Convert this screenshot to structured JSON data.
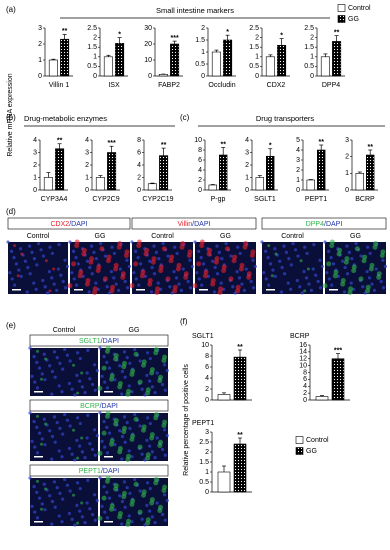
{
  "figure": {
    "panel_labels": [
      "(a)",
      "(b)",
      "(c)",
      "(d)",
      "(e)",
      "(f)"
    ],
    "section_titles": [
      "Small intestine markers",
      "Drug-metabolic enzymes",
      "Drug transporters"
    ],
    "y_axis_label_mrna": "Relative mRNA expression",
    "y_axis_label_cells": "Relative percentage of positive cells",
    "legend_top": [
      {
        "name": "Control",
        "color": "#ffffff"
      },
      {
        "name": "GG",
        "color": "#000000"
      }
    ],
    "legend_f": [
      {
        "name": "Control",
        "color": "#ffffff"
      },
      {
        "name": "GG",
        "color": "#000000"
      }
    ],
    "conditions": [
      "Control",
      "GG"
    ],
    "stains_d": [
      {
        "marker": "CDX2",
        "color": "#e8202a",
        "counterstain": "/DAPI",
        "counterstain_color": "#2233aa"
      },
      {
        "marker": "Villin",
        "color": "#e8202a",
        "counterstain": "/DAPI",
        "counterstain_color": "#2233aa"
      },
      {
        "marker": "DPP4",
        "color": "#2fb34a",
        "counterstain": "/DAPI",
        "counterstain_color": "#2233aa"
      }
    ],
    "stains_e": [
      {
        "marker": "SGLT1",
        "color": "#2fb34a",
        "counterstain": "/DAPI",
        "counterstain_color": "#2233aa"
      },
      {
        "marker": "BCRP",
        "color": "#2fb34a",
        "counterstain": "/DAPI",
        "counterstain_color": "#2233aa"
      },
      {
        "marker": "PEPT1",
        "color": "#2fb34a",
        "counterstain": "/DAPI",
        "counterstain_color": "#2233aa"
      }
    ]
  },
  "chart_data": [
    {
      "type": "bar",
      "xlabel": "Villin 1",
      "values": [
        1,
        2.3
      ],
      "errors": [
        0.05,
        0.3
      ],
      "significance": "**",
      "ylim": [
        0,
        3
      ],
      "yticks": [
        0,
        1,
        2,
        3
      ]
    },
    {
      "type": "bar",
      "xlabel": "ISX",
      "values": [
        1,
        1.7
      ],
      "errors": [
        0.08,
        0.3
      ],
      "significance": "*",
      "ylim": [
        0,
        2.5
      ],
      "yticks": [
        0,
        0.5,
        1,
        1.5,
        2,
        2.5
      ]
    },
    {
      "type": "bar",
      "xlabel": "FABP2",
      "values": [
        1,
        20
      ],
      "errors": [
        0.2,
        1.8
      ],
      "significance": "***",
      "ylim": [
        0,
        30
      ],
      "yticks": [
        0,
        10,
        20,
        30
      ]
    },
    {
      "type": "bar",
      "xlabel": "Occludin",
      "values": [
        1,
        1.5
      ],
      "errors": [
        0.08,
        0.2
      ],
      "significance": "*",
      "ylim": [
        0,
        2
      ],
      "yticks": [
        0,
        0.5,
        1,
        1.5,
        2
      ]
    },
    {
      "type": "bar",
      "xlabel": "CDX2",
      "values": [
        1,
        1.6
      ],
      "errors": [
        0.1,
        0.35
      ],
      "significance": "*",
      "ylim": [
        0,
        2.5
      ],
      "yticks": [
        0,
        0.5,
        1,
        1.5,
        2,
        2.5
      ]
    },
    {
      "type": "bar",
      "xlabel": "DPP4",
      "values": [
        1,
        1.8
      ],
      "errors": [
        0.15,
        0.3
      ],
      "significance": "**",
      "ylim": [
        0,
        2.5
      ],
      "yticks": [
        0,
        0.5,
        1,
        1.5,
        2,
        2.5
      ]
    },
    {
      "type": "bar",
      "xlabel": "CYP3A4",
      "values": [
        1,
        3.3
      ],
      "errors": [
        0.4,
        0.4
      ],
      "significance": "**",
      "ylim": [
        0,
        4
      ],
      "yticks": [
        0,
        1,
        2,
        3,
        4
      ]
    },
    {
      "type": "bar",
      "xlabel": "CYP2C9",
      "values": [
        1,
        3.0
      ],
      "errors": [
        0.15,
        0.5
      ],
      "significance": "***",
      "ylim": [
        0,
        4
      ],
      "yticks": [
        0,
        1,
        2,
        3,
        4
      ]
    },
    {
      "type": "bar",
      "xlabel": "CYP2C19",
      "values": [
        1,
        5.5
      ],
      "errors": [
        0.1,
        1.2
      ],
      "significance": "**",
      "ylim": [
        0,
        8
      ],
      "yticks": [
        0,
        2,
        4,
        6,
        8
      ]
    },
    {
      "type": "bar",
      "xlabel": "P-gp",
      "values": [
        1,
        7
      ],
      "errors": [
        0.1,
        1.5
      ],
      "significance": "**",
      "ylim": [
        0,
        10
      ],
      "yticks": [
        0,
        2,
        4,
        6,
        8,
        10
      ]
    },
    {
      "type": "bar",
      "xlabel": "SGLT1",
      "values": [
        1,
        2.7
      ],
      "errors": [
        0.15,
        0.6
      ],
      "significance": "*",
      "ylim": [
        0,
        4
      ],
      "yticks": [
        0,
        1,
        2,
        3,
        4
      ]
    },
    {
      "type": "bar",
      "xlabel": "PEPT1",
      "values": [
        1,
        4
      ],
      "errors": [
        0.05,
        0.5
      ],
      "significance": "**",
      "ylim": [
        0,
        5
      ],
      "yticks": [
        0,
        1,
        2,
        3,
        4,
        5
      ]
    },
    {
      "type": "bar",
      "xlabel": "BCRP",
      "values": [
        1,
        2.1
      ],
      "errors": [
        0.08,
        0.3
      ],
      "significance": "**",
      "ylim": [
        0,
        3
      ],
      "yticks": [
        0,
        1,
        2,
        3
      ]
    },
    {
      "type": "bar",
      "title": "SGLT1",
      "values": [
        1,
        7.8
      ],
      "errors": [
        0.3,
        1.3
      ],
      "significance": "**",
      "ylim": [
        0,
        10
      ],
      "yticks": [
        0,
        2,
        4,
        6,
        8,
        10
      ]
    },
    {
      "type": "bar",
      "title": "BCRP",
      "values": [
        1,
        12
      ],
      "errors": [
        0.3,
        1.5
      ],
      "significance": "***",
      "ylim": [
        0,
        16
      ],
      "yticks": [
        0,
        2,
        4,
        6,
        8,
        10,
        12,
        14,
        16
      ]
    },
    {
      "type": "bar",
      "title": "PEPT1",
      "values": [
        1,
        2.4
      ],
      "errors": [
        0.3,
        0.3
      ],
      "significance": "**",
      "ylim": [
        0,
        3
      ],
      "yticks": [
        0,
        0.5,
        1,
        1.5,
        2,
        2.5,
        3
      ]
    }
  ]
}
